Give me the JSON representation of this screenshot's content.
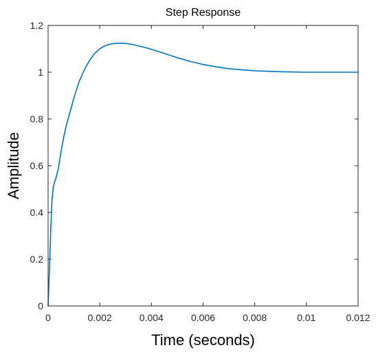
{
  "chart_data": {
    "type": "line",
    "title": "Step Response",
    "xlabel": "Time (seconds)",
    "ylabel": "Amplitude",
    "xlim": [
      0,
      0.012
    ],
    "ylim": [
      0,
      1.2
    ],
    "grid": false,
    "legend": "none",
    "x_ticks": [
      {
        "value": 0,
        "label": "0"
      },
      {
        "value": 0.002,
        "label": "0.002"
      },
      {
        "value": 0.004,
        "label": "0.004"
      },
      {
        "value": 0.006,
        "label": "0.006"
      },
      {
        "value": 0.008,
        "label": "0.008"
      },
      {
        "value": 0.01,
        "label": "0.01"
      },
      {
        "value": 0.012,
        "label": "0.012"
      }
    ],
    "y_ticks": [
      {
        "value": 0,
        "label": "0"
      },
      {
        "value": 0.2,
        "label": "0.2"
      },
      {
        "value": 0.4,
        "label": "0.4"
      },
      {
        "value": 0.6,
        "label": "0.6"
      },
      {
        "value": 0.8,
        "label": "0.8"
      },
      {
        "value": 1,
        "label": "1"
      },
      {
        "value": 1.2,
        "label": "1.2"
      }
    ],
    "series": [
      {
        "color": "#0072bd",
        "x": [
          0,
          5e-05,
          0.0001,
          0.00015,
          0.0002,
          0.00025,
          0.0003,
          0.0004,
          0.0005,
          0.0006,
          0.0007,
          0.0008,
          0.001,
          0.0012,
          0.0014,
          0.0016,
          0.0018,
          0.002,
          0.0022,
          0.0024,
          0.0026,
          0.0028,
          0.003,
          0.0032,
          0.0034,
          0.0036,
          0.0038,
          0.004,
          0.0045,
          0.005,
          0.0055,
          0.006,
          0.0065,
          0.007,
          0.0075,
          0.008,
          0.0085,
          0.009,
          0.0095,
          0.01,
          0.0105,
          0.011,
          0.0115,
          0.012
        ],
        "y": [
          0,
          0.15,
          0.32,
          0.45,
          0.51,
          0.53,
          0.545,
          0.59,
          0.66,
          0.72,
          0.77,
          0.81,
          0.89,
          0.96,
          1.01,
          1.05,
          1.08,
          1.1,
          1.113,
          1.12,
          1.123,
          1.124,
          1.123,
          1.12,
          1.115,
          1.11,
          1.104,
          1.098,
          1.08,
          1.062,
          1.046,
          1.033,
          1.023,
          1.015,
          1.01,
          1.006,
          1.004,
          1.002,
          1.001,
          1.0,
          1.0,
          1.0,
          1.0,
          1.0
        ]
      }
    ]
  }
}
